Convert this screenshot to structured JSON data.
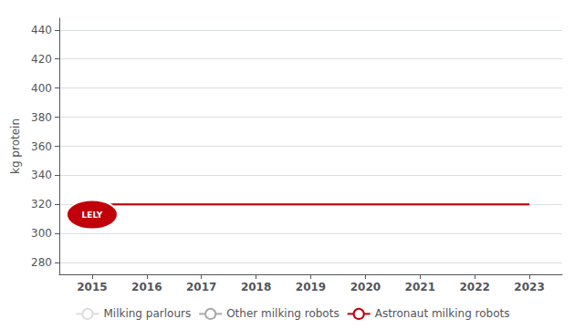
{
  "chart_data": {
    "type": "line",
    "ylabel": "kg protein",
    "x": [
      2015,
      2016,
      2017,
      2018,
      2019,
      2020,
      2021,
      2022,
      2023
    ],
    "xlim": [
      2014.4,
      2023.6
    ],
    "xticks": [
      2015,
      2016,
      2017,
      2018,
      2019,
      2020,
      2021,
      2022,
      2023
    ],
    "ylim": [
      272,
      448
    ],
    "yticks": [
      280,
      300,
      320,
      340,
      360,
      380,
      400,
      420,
      440
    ],
    "grid": true,
    "legend": "bottom",
    "series": [
      {
        "name": "Milking parlours",
        "color": "#dddddd",
        "values": [
          320,
          320,
          320,
          320,
          320,
          320,
          320,
          320,
          320
        ]
      },
      {
        "name": "Other milking robots",
        "color": "#aaaaaa",
        "values": [
          320,
          320,
          320,
          320,
          320,
          320,
          320,
          320,
          320
        ]
      },
      {
        "name": "Astronaut milking robots",
        "color": "#c0000a",
        "values": [
          320,
          320,
          320,
          320,
          320,
          320,
          320,
          320,
          320
        ]
      }
    ],
    "annotations": [
      {
        "text": "LELY",
        "x": 2015,
        "y": 313,
        "color": "#c0000a"
      }
    ]
  }
}
